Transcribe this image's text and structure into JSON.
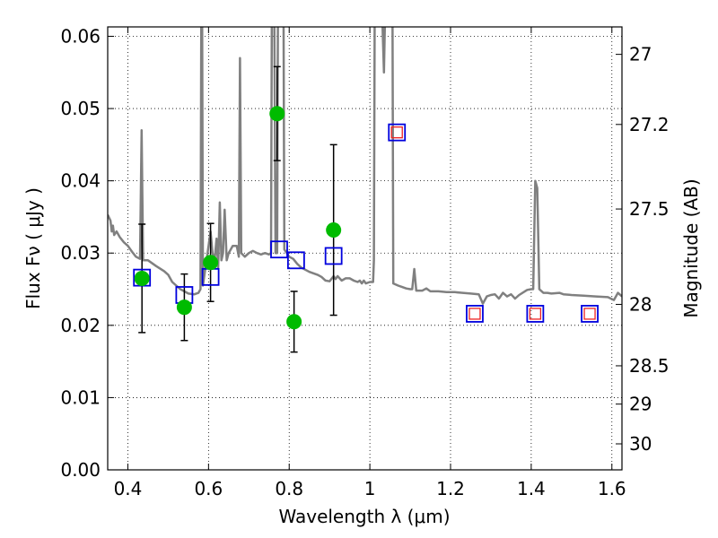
{
  "chart_data": {
    "type": "scatter",
    "xlabel": "Wavelength  λ (μm)",
    "ylabel": "Flux  Fν  ( μJy )",
    "ylabel_right": "Magnitude (AB)",
    "xlim": [
      0.35,
      1.625
    ],
    "ylim": [
      0.0,
      0.0613
    ],
    "grid": true,
    "x_ticks": [
      0.4,
      0.6,
      0.8,
      1.0,
      1.2,
      1.4,
      1.6
    ],
    "x_tick_labels": [
      "0.4",
      "0.6",
      "0.8",
      "1",
      "1.2",
      "1.4",
      "1.6"
    ],
    "y_ticks": [
      0.0,
      0.01,
      0.02,
      0.03,
      0.04,
      0.05,
      0.06
    ],
    "y_tick_labels": [
      "0.00",
      "0.01",
      "0.02",
      "0.03",
      "0.04",
      "0.05",
      "0.06"
    ],
    "right_ticks": [
      {
        "flux": 0.0575,
        "label": "27"
      },
      {
        "flux": 0.0478,
        "label": "27.2"
      },
      {
        "flux": 0.0361,
        "label": "27.5"
      },
      {
        "flux": 0.0229,
        "label": "28"
      },
      {
        "flux": 0.0144,
        "label": "28.5"
      },
      {
        "flux": 0.0091,
        "label": "29"
      },
      {
        "flux": 0.0036,
        "label": "30"
      }
    ],
    "series": [
      {
        "name": "observed",
        "style": "green-circle-errorbar",
        "color": "#00bb00",
        "points": [
          {
            "x": 0.435,
            "y": 0.0265,
            "err": 0.0075
          },
          {
            "x": 0.54,
            "y": 0.0225,
            "err": 0.0046
          },
          {
            "x": 0.605,
            "y": 0.0287,
            "err": 0.0054
          },
          {
            "x": 0.77,
            "y": 0.0493,
            "err": 0.0065
          },
          {
            "x": 0.812,
            "y": 0.0205,
            "err": 0.0042
          },
          {
            "x": 0.91,
            "y": 0.0332,
            "err": 0.0118
          }
        ]
      },
      {
        "name": "model-bandpass",
        "style": "blue-square",
        "color": "#0000dd",
        "points": [
          {
            "x": 0.435,
            "y": 0.0266
          },
          {
            "x": 0.54,
            "y": 0.0242
          },
          {
            "x": 0.605,
            "y": 0.0267
          },
          {
            "x": 0.775,
            "y": 0.0305
          },
          {
            "x": 0.817,
            "y": 0.029
          },
          {
            "x": 0.91,
            "y": 0.0296
          },
          {
            "x": 1.067,
            "y": 0.0467
          },
          {
            "x": 1.26,
            "y": 0.0216
          },
          {
            "x": 1.41,
            "y": 0.0216
          },
          {
            "x": 1.545,
            "y": 0.0216
          }
        ]
      },
      {
        "name": "upper-limits",
        "style": "red-square",
        "color": "#ee2222",
        "points": [
          {
            "x": 1.067,
            "y": 0.0467
          },
          {
            "x": 1.26,
            "y": 0.0216
          },
          {
            "x": 1.41,
            "y": 0.0216
          },
          {
            "x": 1.545,
            "y": 0.0216
          }
        ]
      },
      {
        "name": "sed-model",
        "style": "gray-line",
        "color": "#808080",
        "points": [
          [
            0.35,
            0.0353
          ],
          [
            0.357,
            0.0345
          ],
          [
            0.36,
            0.033
          ],
          [
            0.363,
            0.0338
          ],
          [
            0.366,
            0.0325
          ],
          [
            0.372,
            0.033
          ],
          [
            0.38,
            0.0322
          ],
          [
            0.39,
            0.0315
          ],
          [
            0.4,
            0.031
          ],
          [
            0.41,
            0.0302
          ],
          [
            0.42,
            0.0295
          ],
          [
            0.43,
            0.0292
          ],
          [
            0.43,
            0.0292
          ],
          [
            0.432,
            0.038
          ],
          [
            0.434,
            0.047
          ],
          [
            0.436,
            0.038
          ],
          [
            0.438,
            0.029
          ],
          [
            0.45,
            0.029
          ],
          [
            0.47,
            0.0282
          ],
          [
            0.49,
            0.0275
          ],
          [
            0.5,
            0.027
          ],
          [
            0.51,
            0.026
          ],
          [
            0.52,
            0.0255
          ],
          [
            0.53,
            0.025
          ],
          [
            0.54,
            0.0247
          ],
          [
            0.55,
            0.0244
          ],
          [
            0.565,
            0.0243
          ],
          [
            0.575,
            0.0245
          ],
          [
            0.58,
            0.025
          ],
          [
            0.582,
            0.064
          ],
          [
            0.584,
            0.064
          ],
          [
            0.586,
            0.0255
          ],
          [
            0.595,
            0.029
          ],
          [
            0.6,
            0.031
          ],
          [
            0.605,
            0.033
          ],
          [
            0.61,
            0.03
          ],
          [
            0.615,
            0.029
          ],
          [
            0.62,
            0.032
          ],
          [
            0.624,
            0.028
          ],
          [
            0.628,
            0.037
          ],
          [
            0.632,
            0.029
          ],
          [
            0.636,
            0.03
          ],
          [
            0.64,
            0.036
          ],
          [
            0.645,
            0.029
          ],
          [
            0.65,
            0.03
          ],
          [
            0.66,
            0.031
          ],
          [
            0.67,
            0.031
          ],
          [
            0.675,
            0.0295
          ],
          [
            0.678,
            0.057
          ],
          [
            0.681,
            0.03
          ],
          [
            0.69,
            0.0295
          ],
          [
            0.7,
            0.03
          ],
          [
            0.71,
            0.0303
          ],
          [
            0.72,
            0.03
          ],
          [
            0.73,
            0.0298
          ],
          [
            0.74,
            0.03
          ],
          [
            0.75,
            0.0298
          ],
          [
            0.755,
            0.03
          ],
          [
            0.757,
            0.064
          ],
          [
            0.763,
            0.064
          ],
          [
            0.766,
            0.03
          ],
          [
            0.77,
            0.03
          ],
          [
            0.772,
            0.064
          ],
          [
            0.786,
            0.064
          ],
          [
            0.788,
            0.0305
          ],
          [
            0.8,
            0.0295
          ],
          [
            0.81,
            0.0292
          ],
          [
            0.82,
            0.0285
          ],
          [
            0.83,
            0.028
          ],
          [
            0.84,
            0.0277
          ],
          [
            0.85,
            0.0274
          ],
          [
            0.86,
            0.0272
          ],
          [
            0.87,
            0.027
          ],
          [
            0.88,
            0.0267
          ],
          [
            0.89,
            0.0262
          ],
          [
            0.9,
            0.0261
          ],
          [
            0.91,
            0.0268
          ],
          [
            0.915,
            0.0264
          ],
          [
            0.92,
            0.0268
          ],
          [
            0.93,
            0.0262
          ],
          [
            0.94,
            0.0265
          ],
          [
            0.95,
            0.0265
          ],
          [
            0.96,
            0.0262
          ],
          [
            0.97,
            0.026
          ],
          [
            0.975,
            0.0262
          ],
          [
            0.98,
            0.0258
          ],
          [
            0.985,
            0.0262
          ],
          [
            0.99,
            0.0258
          ],
          [
            1.0,
            0.026
          ],
          [
            1.008,
            0.026
          ],
          [
            1.01,
            0.029
          ],
          [
            1.012,
            0.064
          ],
          [
            1.03,
            0.064
          ],
          [
            1.035,
            0.055
          ],
          [
            1.038,
            0.064
          ],
          [
            1.056,
            0.064
          ],
          [
            1.058,
            0.0258
          ],
          [
            1.07,
            0.0255
          ],
          [
            1.08,
            0.0253
          ],
          [
            1.09,
            0.0251
          ],
          [
            1.1,
            0.025
          ],
          [
            1.105,
            0.025
          ],
          [
            1.11,
            0.0278
          ],
          [
            1.115,
            0.0248
          ],
          [
            1.13,
            0.0248
          ],
          [
            1.14,
            0.0251
          ],
          [
            1.15,
            0.0247
          ],
          [
            1.17,
            0.0247
          ],
          [
            1.19,
            0.0246
          ],
          [
            1.21,
            0.0246
          ],
          [
            1.23,
            0.0245
          ],
          [
            1.25,
            0.0244
          ],
          [
            1.27,
            0.0243
          ],
          [
            1.28,
            0.023
          ],
          [
            1.29,
            0.024
          ],
          [
            1.3,
            0.0242
          ],
          [
            1.31,
            0.0243
          ],
          [
            1.32,
            0.0237
          ],
          [
            1.33,
            0.0245
          ],
          [
            1.34,
            0.024
          ],
          [
            1.35,
            0.0243
          ],
          [
            1.36,
            0.0237
          ],
          [
            1.37,
            0.0242
          ],
          [
            1.39,
            0.0249
          ],
          [
            1.4,
            0.025
          ],
          [
            1.405,
            0.025
          ],
          [
            1.41,
            0.04
          ],
          [
            1.415,
            0.039
          ],
          [
            1.42,
            0.025
          ],
          [
            1.43,
            0.0245
          ],
          [
            1.44,
            0.0245
          ],
          [
            1.45,
            0.0244
          ],
          [
            1.47,
            0.0245
          ],
          [
            1.48,
            0.0243
          ],
          [
            1.5,
            0.0242
          ],
          [
            1.53,
            0.0241
          ],
          [
            1.56,
            0.024
          ],
          [
            1.59,
            0.0239
          ],
          [
            1.605,
            0.0235
          ],
          [
            1.615,
            0.0245
          ],
          [
            1.625,
            0.024
          ]
        ]
      }
    ]
  }
}
